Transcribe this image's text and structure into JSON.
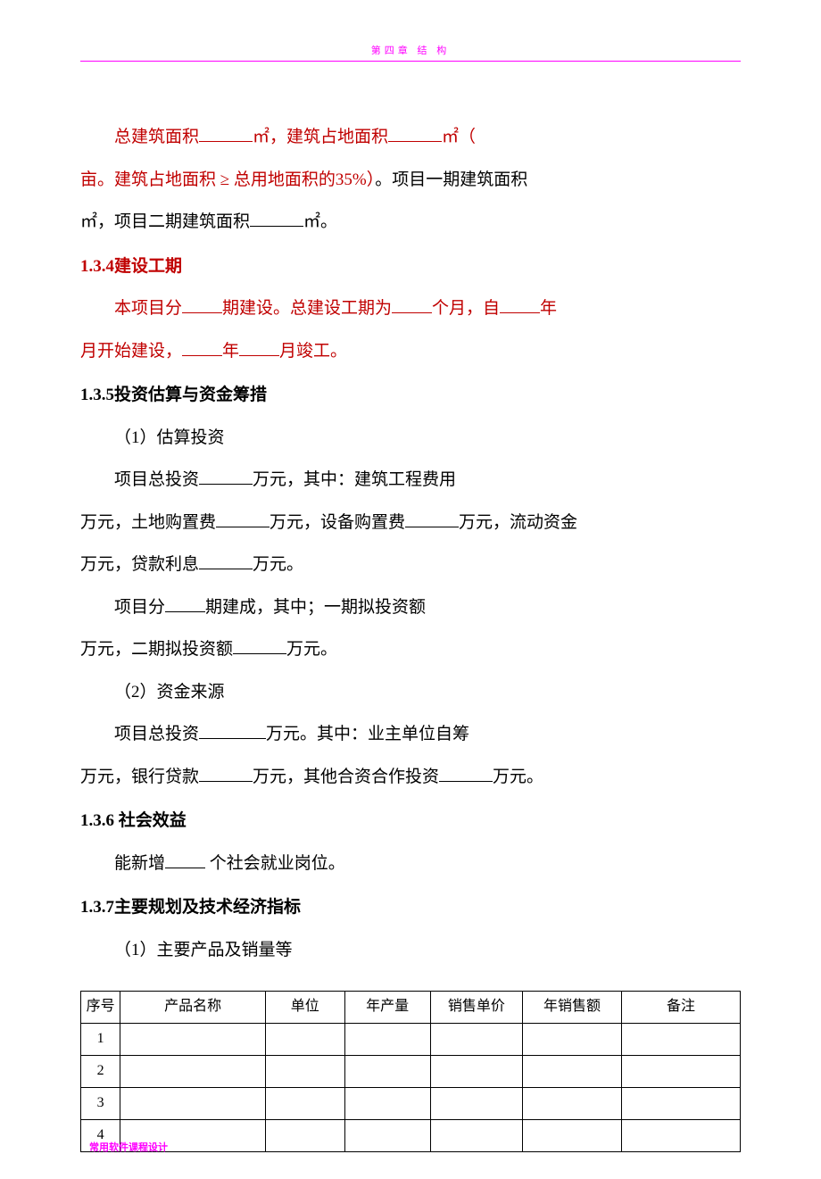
{
  "header": {
    "title": "第四章  结  构"
  },
  "paragraphs": {
    "p1_a": "总建筑面积",
    "p1_b": "㎡，建筑占地面积",
    "p1_c": "㎡（",
    "p2_a": "亩。建筑占地面积 ≥ 总用地面积的35%）",
    "p2_b": "。项目一期建筑面积",
    "p3_a": "㎡，项目二期建筑面积",
    "p3_b": "㎡。",
    "h134": "1.3.4建设工期",
    "p4_a": "本项目分",
    "p4_b": "期建设。总建设工期为",
    "p4_c": "个月，自",
    "p4_d": "年",
    "p5_a": "月开始建设，",
    "p5_b": "年",
    "p5_c": "月竣工。",
    "h135": "1.3.5投资估算与资金筹措",
    "p6": "（1）估算投资",
    "p7_a": "项目总投资",
    "p7_b": "万元，其中：建筑工程费用",
    "p8_a": "万元，土地购置费",
    "p8_b": "万元，设备购置费",
    "p8_c": "万元，流动资金",
    "p9_a": "万元，贷款利息",
    "p9_b": "万元。",
    "p10_a": "项目分",
    "p10_b": "期建成，其中；一期拟投资额",
    "p11_a": "万元，二期拟投资额",
    "p11_b": "万元。",
    "p12": "（2）资金来源",
    "p13_a": "项目总投资",
    "p13_b": "万元。其中：业主单位自筹",
    "p14_a": "万元，银行贷款",
    "p14_b": "万元，其他合资合作投资",
    "p14_c": "万元。",
    "h136": "1.3.6 社会效益",
    "p15_a": "能新增",
    "p15_b": " 个社会就业岗位。",
    "h137": "1.3.7主要规划及技术经济指标",
    "p16": "（1）主要产品及销量等"
  },
  "table": {
    "columns": [
      "序号",
      "产品名称",
      "单位",
      "年产量",
      "销售单价",
      "年销售额",
      "备注"
    ],
    "rows": [
      [
        "1",
        "",
        "",
        "",
        "",
        "",
        ""
      ],
      [
        "2",
        "",
        "",
        "",
        "",
        "",
        ""
      ],
      [
        "3",
        "",
        "",
        "",
        "",
        "",
        ""
      ],
      [
        "4",
        "",
        "",
        "",
        "",
        "",
        ""
      ]
    ],
    "column_classes": [
      "col-seq",
      "col-name",
      "col-unit",
      "col-annual",
      "col-price",
      "col-sales",
      "col-remark"
    ]
  },
  "footer": {
    "text": "常用软件课程设计"
  },
  "colors": {
    "accent_red": "#c00000",
    "accent_magenta": "#ff00ff",
    "text": "#000000",
    "background": "#ffffff",
    "border": "#000000"
  }
}
